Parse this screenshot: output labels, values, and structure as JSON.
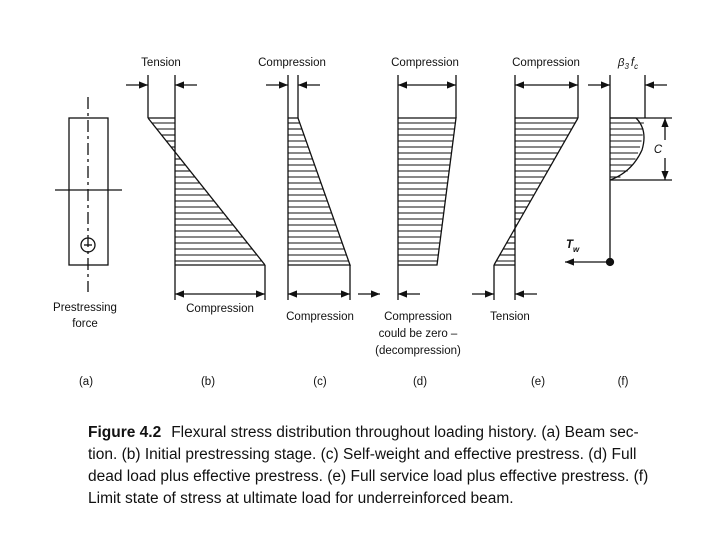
{
  "panels": [
    {
      "label": "(a)",
      "bottom_label": [
        "Prestressing",
        "force"
      ]
    },
    {
      "label": "(b)",
      "top_label": "Tension",
      "bottom_label": [
        "Compression"
      ]
    },
    {
      "label": "(c)",
      "top_label": "Compression",
      "bottom_label": [
        "Compression"
      ]
    },
    {
      "label": "(d)",
      "top_label": "Compression",
      "bottom_label": [
        "Compression",
        "could be zero –",
        "(decompression)"
      ]
    },
    {
      "label": "(e)",
      "top_label": "Compression",
      "bottom_label": [
        "Tension"
      ]
    },
    {
      "label": "(f)",
      "top_label": {
        "symbol": "β",
        "symbol_sub": "3",
        "stress": "f",
        "stress_sub": "c"
      },
      "depth_label": "C",
      "force_label": {
        "symbol": "T",
        "sub": "w"
      }
    }
  ],
  "caption": {
    "figure": "Figure 4.2",
    "lines": [
      "Flexural stress distribution throughout loading history. (a) Beam sec-",
      "tion. (b) Initial prestressing stage. (c) Self-weight and effective prestress. (d) Full",
      "dead load plus effective prestress. (e) Full service load plus effective prestress. (f)",
      "Limit state of stress at ultimate load for underreinforced beam."
    ]
  }
}
